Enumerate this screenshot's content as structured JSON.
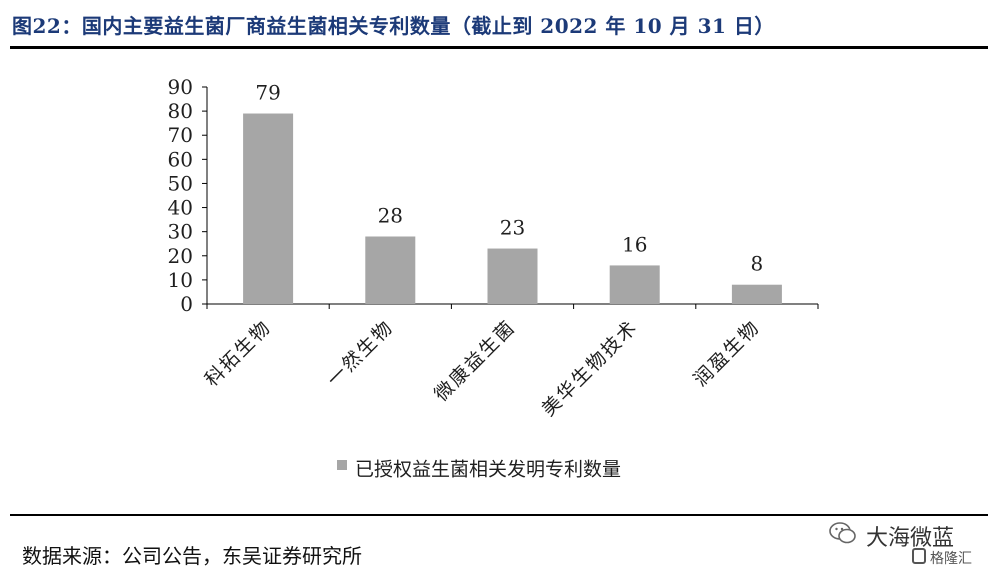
{
  "header": {
    "title": "图22：国内主要益生菌厂商益生菌相关专利数量（截止到 2022 年 10 月 31 日）"
  },
  "chart_data": {
    "type": "bar",
    "categories": [
      "科拓生物",
      "一然生物",
      "微康益生菌",
      "美华生物技术",
      "润盈生物"
    ],
    "series": [
      {
        "name": "已授权益生菌相关发明专利数量",
        "values": [
          79,
          28,
          23,
          16,
          8
        ]
      }
    ],
    "yticks": [
      0,
      10,
      20,
      30,
      40,
      50,
      60,
      70,
      80,
      90
    ],
    "ylim": [
      0,
      90
    ],
    "legend_position": "bottom",
    "grid": false,
    "bar_color": "#a6a6a6"
  },
  "footer": {
    "source": "数据来源：公司公告，东吴证券研究所"
  },
  "watermark": {
    "line1": "大海微蓝",
    "line2": "格隆汇"
  }
}
